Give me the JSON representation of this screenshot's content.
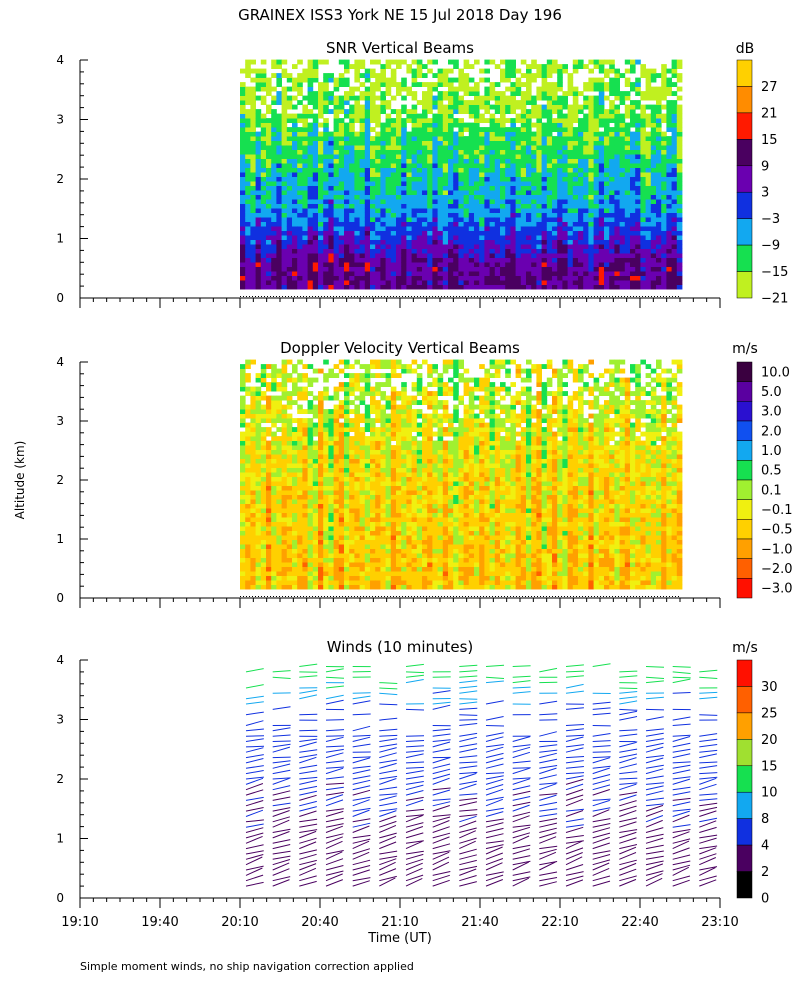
{
  "figure": {
    "title": "GRAINEX ISS3 York NE  15 Jul 2018 Day 196",
    "ylabel": "Altitude (km)",
    "xlabel": "Time (UT)",
    "footnote": "Simple moment winds, no ship navigation correction applied",
    "x_ticks": [
      "19:10",
      "19:40",
      "20:10",
      "20:40",
      "21:10",
      "21:40",
      "22:10",
      "22:40",
      "23:10"
    ],
    "y_ticks": [
      "0",
      "1",
      "2",
      "3",
      "4"
    ]
  },
  "chart_data": [
    {
      "type": "heatmap",
      "title": "SNR Vertical Beams",
      "colorbar_unit": "dB",
      "colorbar_labels": [
        "27",
        "21",
        "15",
        "9",
        "3",
        "−3",
        "−9",
        "−15",
        "−21"
      ],
      "colors": [
        "#ffd000",
        "#ff8c00",
        "#ff1a00",
        "#4a0060",
        "#6a00b0",
        "#1030e0",
        "#12a8f0",
        "#16e050",
        "#c0f020"
      ],
      "x_range": [
        "19:10",
        "23:10"
      ],
      "data_x_range": [
        "20:10",
        "22:55"
      ],
      "y_range_km": [
        0,
        4
      ],
      "data_y_range_km": [
        0.15,
        4.0
      ],
      "profile": [
        {
          "alt_km": 0.5,
          "snr_db": 6
        },
        {
          "alt_km": 1.0,
          "snr_db": -2
        },
        {
          "alt_km": 1.5,
          "snr_db": -9
        },
        {
          "alt_km": 2.0,
          "snr_db": -12
        },
        {
          "alt_km": 2.5,
          "snr_db": -15
        },
        {
          "alt_km": 3.0,
          "snr_db": -18
        },
        {
          "alt_km": 3.5,
          "snr_db": -20
        }
      ]
    },
    {
      "type": "heatmap",
      "title": "Doppler Velocity Vertical Beams",
      "colorbar_unit": "m/s",
      "colorbar_labels": [
        "10.0",
        "5.0",
        "3.0",
        "2.0",
        "1.0",
        "0.5",
        "0.1",
        "−0.1",
        "−0.5",
        "−1.0",
        "−2.0",
        "−3.0"
      ],
      "colors": [
        "#3a0040",
        "#5a00a0",
        "#2a10d0",
        "#1050f0",
        "#12a8f0",
        "#16e050",
        "#a0f030",
        "#f0f010",
        "#ffd000",
        "#ffa000",
        "#ff6000",
        "#ff1000"
      ],
      "x_range": [
        "19:10",
        "23:10"
      ],
      "data_x_range": [
        "20:10",
        "22:55"
      ],
      "y_range_km": [
        0,
        4
      ],
      "data_y_range_km": [
        0.15,
        4.0
      ],
      "profile": [
        {
          "alt_km": 0.5,
          "w_ms": -0.4
        },
        {
          "alt_km": 1.0,
          "w_ms": -0.3
        },
        {
          "alt_km": 1.5,
          "w_ms": -0.3
        },
        {
          "alt_km": 2.0,
          "w_ms": -0.2
        },
        {
          "alt_km": 2.5,
          "w_ms": -0.1
        },
        {
          "alt_km": 3.0,
          "w_ms": 0.0
        },
        {
          "alt_km": 3.5,
          "w_ms": 0.1
        }
      ]
    },
    {
      "type": "scatter",
      "title": "Winds (10 minutes)",
      "colorbar_unit": "m/s",
      "colorbar_labels": [
        "30",
        "25",
        "20",
        "15",
        "10",
        "8",
        "4",
        "2",
        "0"
      ],
      "colors": [
        "#ff1000",
        "#ff6000",
        "#ffa000",
        "#a0e030",
        "#16e050",
        "#12a8f0",
        "#1030e0",
        "#4a0060",
        "#000000"
      ],
      "x_range": [
        "19:10",
        "23:10"
      ],
      "profile_times": [
        "20:10",
        "20:20",
        "20:30",
        "20:40",
        "20:50",
        "21:00",
        "21:10",
        "21:20",
        "21:30",
        "21:40",
        "21:50",
        "22:00",
        "22:10",
        "22:20",
        "22:30",
        "22:40",
        "22:50",
        "23:00"
      ],
      "profile": [
        {
          "alt_km": 0.5,
          "speed_ms": 3
        },
        {
          "alt_km": 1.0,
          "speed_ms": 3
        },
        {
          "alt_km": 1.5,
          "speed_ms": 4
        },
        {
          "alt_km": 2.0,
          "speed_ms": 5
        },
        {
          "alt_km": 2.5,
          "speed_ms": 6
        },
        {
          "alt_km": 3.0,
          "speed_ms": 7
        },
        {
          "alt_km": 3.5,
          "speed_ms": 9
        },
        {
          "alt_km": 3.8,
          "speed_ms": 12
        }
      ]
    }
  ]
}
